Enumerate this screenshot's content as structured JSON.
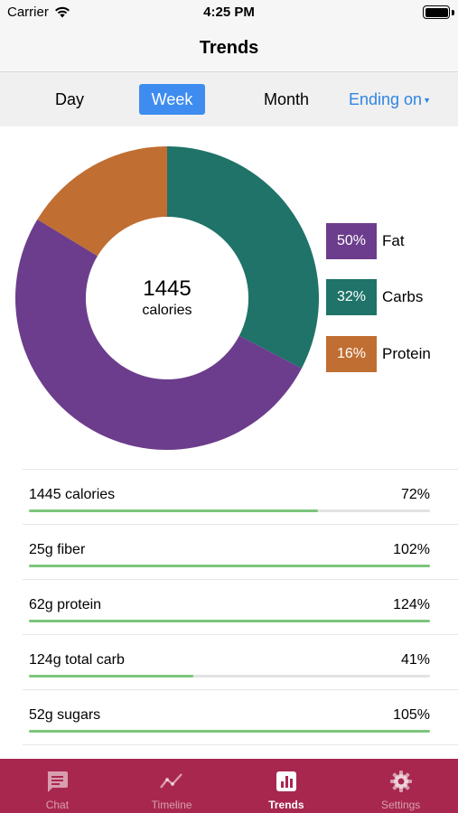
{
  "status": {
    "carrier": "Carrier",
    "time": "4:25 PM"
  },
  "nav": {
    "title": "Trends"
  },
  "segments": {
    "day": "Day",
    "week": "Week",
    "month": "Month",
    "ending": "Ending on",
    "selected": "Week"
  },
  "summary": {
    "calories_value": "1445",
    "calories_unit": "calories"
  },
  "chart_data": {
    "type": "pie",
    "categories": [
      "Fat",
      "Carbs",
      "Protein"
    ],
    "values": [
      50,
      32,
      16
    ],
    "value_labels": [
      "50%",
      "32%",
      "16%"
    ],
    "colors": [
      "#6c3d8c",
      "#1f7369",
      "#c06e32"
    ],
    "legend_position": "right"
  },
  "nutrients": [
    {
      "label": "1445 calories",
      "percent": "72%",
      "fraction": 0.72
    },
    {
      "label": "25g fiber",
      "percent": "102%",
      "fraction": 1.0
    },
    {
      "label": "62g protein",
      "percent": "124%",
      "fraction": 1.0
    },
    {
      "label": "124g total carb",
      "percent": "41%",
      "fraction": 0.41
    },
    {
      "label": "52g sugars",
      "percent": "105%",
      "fraction": 1.0
    }
  ],
  "tabs": [
    {
      "label": "Chat",
      "icon": "chat-icon",
      "active": false
    },
    {
      "label": "Timeline",
      "icon": "timeline-icon",
      "active": false
    },
    {
      "label": "Trends",
      "icon": "bar-chart-icon",
      "active": true
    },
    {
      "label": "Settings",
      "icon": "gear-icon",
      "active": false
    }
  ],
  "colors": {
    "accent": "#3e8cf0",
    "tab_bar": "#a8274f",
    "progress": "#7cc67c"
  }
}
